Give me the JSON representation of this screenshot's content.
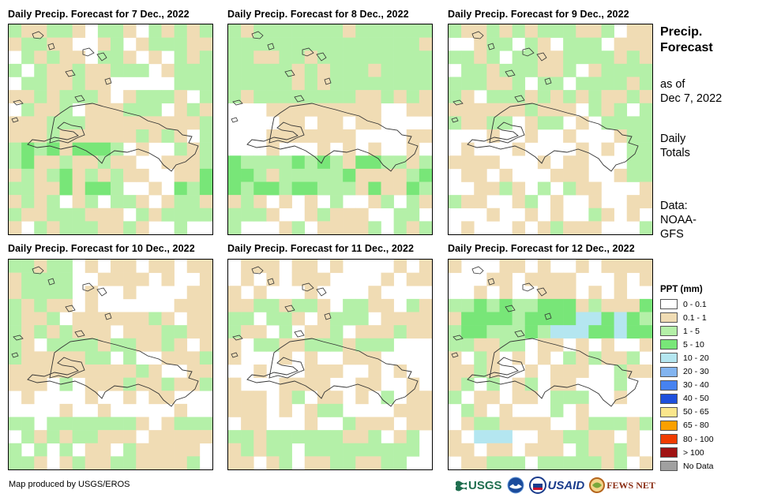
{
  "panels": [
    {
      "title": "Daily Precip. Forecast for 7 Dec., 2022",
      "seed": 7
    },
    {
      "title": "Daily Precip. Forecast for 8 Dec., 2022",
      "seed": 8
    },
    {
      "title": "Daily Precip. Forecast for 9 Dec., 2022",
      "seed": 9
    },
    {
      "title": "Daily Precip. Forecast for 10 Dec., 2022",
      "seed": 10
    },
    {
      "title": "Daily Precip. Forecast for 11 Dec., 2022",
      "seed": 11
    },
    {
      "title": "Daily Precip. Forecast for 12 Dec., 2022",
      "seed": 12
    }
  ],
  "side": {
    "title_line1": "Precip.",
    "title_line2": "Forecast",
    "asof_line1": "as of",
    "asof_line2": "Dec 7, 2022",
    "totals_line1": "Daily",
    "totals_line2": "Totals",
    "data_line1": "Data:",
    "data_line2": "NOAA-",
    "data_line3": "GFS"
  },
  "legend": {
    "title": "PPT (mm)",
    "items": [
      {
        "label": "0 - 0.1",
        "color": "#ffffff"
      },
      {
        "label": "0.1 - 1",
        "color": "#f0dcb4"
      },
      {
        "label": "1 - 5",
        "color": "#b4f0a8"
      },
      {
        "label": "5 - 10",
        "color": "#78e678"
      },
      {
        "label": "10 - 20",
        "color": "#b4e6f0"
      },
      {
        "label": "20 - 30",
        "color": "#82b4f0"
      },
      {
        "label": "30 - 40",
        "color": "#4682f0"
      },
      {
        "label": "40 - 50",
        "color": "#1e50dc"
      },
      {
        "label": "50 - 65",
        "color": "#fae68c"
      },
      {
        "label": "65 - 80",
        "color": "#faa000"
      },
      {
        "label": "80 - 100",
        "color": "#f03c00"
      },
      {
        "label": "> 100",
        "color": "#a01414"
      },
      {
        "label": "No Data",
        "color": "#a0a0a0"
      }
    ]
  },
  "credit": "Map produced by USGS/EROS",
  "logos": {
    "usgs": "USGS",
    "usaid": "USAID",
    "fewsnet": "FEWS NET"
  }
}
